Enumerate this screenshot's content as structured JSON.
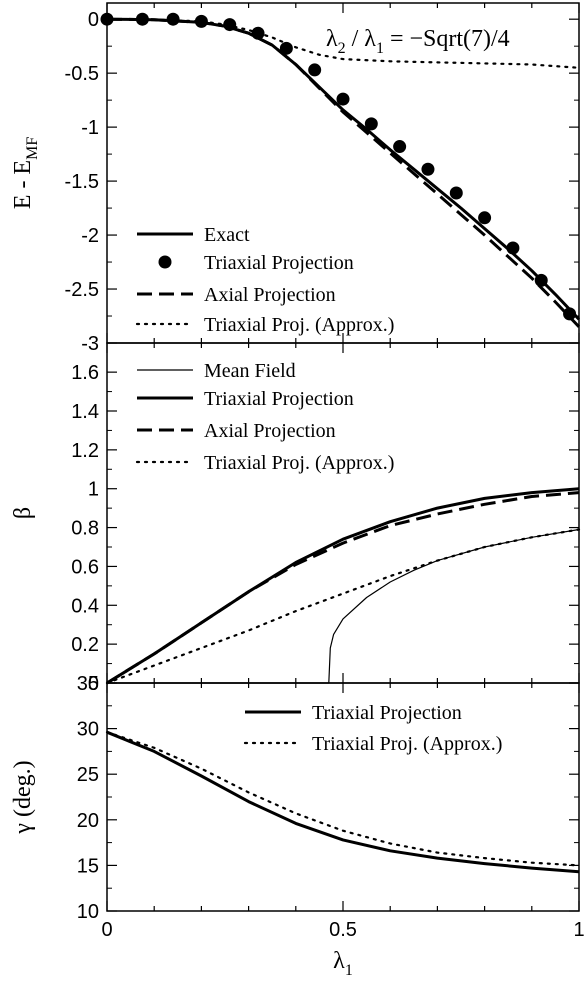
{
  "chart_data": [
    {
      "type": "line",
      "panel": "energy",
      "ylabel": "E - E",
      "ylabel_sub": "MF",
      "annotation": {
        "lhs": "λ",
        "lhs_sub": "2",
        "mid": " / λ",
        "mid_sub": "1",
        "rhs": " = −Sqrt(7)/4"
      },
      "xlim": [
        0,
        1
      ],
      "ylim": [
        -3,
        0.15
      ],
      "yticks": [
        0,
        -0.5,
        -1,
        -1.5,
        -2,
        -2.5,
        -3
      ],
      "ytick_labels": [
        "0",
        "-0.5",
        "-1",
        "-1.5",
        "-2",
        "-2.5",
        "-3"
      ],
      "series": [
        {
          "name": "Exact",
          "style": "solid",
          "x": [
            0,
            0.1,
            0.2,
            0.25,
            0.3,
            0.35,
            0.4,
            0.45,
            0.5,
            0.55,
            0.6,
            0.65,
            0.7,
            0.75,
            0.8,
            0.85,
            0.9,
            0.95,
            1.0
          ],
          "y": [
            0,
            -0.005,
            -0.03,
            -0.065,
            -0.13,
            -0.24,
            -0.42,
            -0.63,
            -0.84,
            -1.02,
            -1.21,
            -1.39,
            -1.57,
            -1.75,
            -1.94,
            -2.13,
            -2.33,
            -2.55,
            -2.78
          ]
        },
        {
          "name": "Triaxial Projection",
          "style": "markers",
          "x": [
            0,
            0.075,
            0.14,
            0.2,
            0.26,
            0.32,
            0.38,
            0.44,
            0.5,
            0.56,
            0.62,
            0.68,
            0.74,
            0.8,
            0.86,
            0.92,
            0.98
          ],
          "y": [
            0,
            0,
            0,
            -0.02,
            -0.05,
            -0.13,
            -0.27,
            -0.47,
            -0.74,
            -0.97,
            -1.18,
            -1.39,
            -1.61,
            -1.84,
            -2.12,
            -2.42,
            -2.73
          ]
        },
        {
          "name": "Axial Projection",
          "style": "dashed",
          "x": [
            0,
            0.1,
            0.2,
            0.25,
            0.3,
            0.35,
            0.4,
            0.45,
            0.5,
            0.55,
            0.6,
            0.65,
            0.7,
            0.75,
            0.8,
            0.85,
            0.9,
            0.95,
            1.0
          ],
          "y": [
            0,
            -0.005,
            -0.03,
            -0.065,
            -0.13,
            -0.24,
            -0.42,
            -0.64,
            -0.86,
            -1.05,
            -1.24,
            -1.43,
            -1.62,
            -1.81,
            -2.0,
            -2.2,
            -2.4,
            -2.62,
            -2.85
          ]
        },
        {
          "name": "Triaxial Proj. (Approx.)",
          "style": "dotted",
          "x": [
            0,
            0.1,
            0.2,
            0.25,
            0.3,
            0.35,
            0.4,
            0.45,
            0.5,
            0.6,
            0.7,
            0.8,
            0.9,
            1.0
          ],
          "y": [
            0,
            -0.005,
            -0.02,
            -0.05,
            -0.1,
            -0.17,
            -0.26,
            -0.33,
            -0.37,
            -0.39,
            -0.4,
            -0.41,
            -0.42,
            -0.45
          ]
        }
      ]
    },
    {
      "type": "line",
      "panel": "beta",
      "ylabel": "β",
      "xlim": [
        0,
        1
      ],
      "ylim": [
        0,
        1.75
      ],
      "yticks": [
        0,
        0.2,
        0.4,
        0.6,
        0.8,
        1.0,
        1.2,
        1.4,
        1.6
      ],
      "ytick_labels": [
        "0",
        "0.2",
        "0.4",
        "0.6",
        "0.8",
        "1",
        "1.2",
        "1.4",
        "1.6"
      ],
      "series": [
        {
          "name": "Mean Field",
          "style": "thin",
          "x": [
            0,
            0.47,
            0.473,
            0.48,
            0.5,
            0.55,
            0.6,
            0.65,
            0.7,
            0.8,
            0.9,
            1.0
          ],
          "y": [
            0,
            0,
            0.18,
            0.25,
            0.33,
            0.44,
            0.52,
            0.58,
            0.63,
            0.7,
            0.75,
            0.79
          ]
        },
        {
          "name": "Triaxial Projection",
          "style": "solid",
          "x": [
            0,
            0.1,
            0.2,
            0.3,
            0.4,
            0.5,
            0.6,
            0.7,
            0.8,
            0.9,
            1.0
          ],
          "y": [
            0,
            0.15,
            0.31,
            0.47,
            0.62,
            0.74,
            0.83,
            0.9,
            0.95,
            0.98,
            1.0
          ]
        },
        {
          "name": "Axial Projection",
          "style": "dashed",
          "x": [
            0,
            0.1,
            0.2,
            0.3,
            0.4,
            0.5,
            0.6,
            0.7,
            0.8,
            0.9,
            1.0
          ],
          "y": [
            0,
            0.15,
            0.31,
            0.47,
            0.61,
            0.72,
            0.81,
            0.87,
            0.92,
            0.96,
            0.98
          ]
        },
        {
          "name": "Triaxial Proj. (Approx.)",
          "style": "dotted",
          "x": [
            0,
            0.1,
            0.2,
            0.3,
            0.4,
            0.5,
            0.6,
            0.7,
            0.8,
            0.9,
            1.0
          ],
          "y": [
            0,
            0.09,
            0.18,
            0.27,
            0.37,
            0.46,
            0.55,
            0.63,
            0.7,
            0.75,
            0.79
          ]
        }
      ]
    },
    {
      "type": "line",
      "panel": "gamma",
      "ylabel": "γ (deg.)",
      "xlabel": "λ",
      "xlabel_sub": "1",
      "xlim": [
        0,
        1
      ],
      "ylim": [
        10,
        35
      ],
      "yticks": [
        10,
        15,
        20,
        25,
        30,
        35
      ],
      "ytick_labels": [
        "10",
        "15",
        "20",
        "25",
        "30",
        "35"
      ],
      "xticks": [
        0,
        0.5,
        1
      ],
      "xtick_labels": [
        "0",
        "0.5",
        "1"
      ],
      "series": [
        {
          "name": "Triaxial Projection",
          "style": "solid",
          "x": [
            0,
            0.1,
            0.2,
            0.3,
            0.4,
            0.5,
            0.6,
            0.7,
            0.8,
            0.9,
            1.0
          ],
          "y": [
            29.6,
            27.5,
            24.8,
            22.0,
            19.6,
            17.8,
            16.6,
            15.8,
            15.2,
            14.7,
            14.3
          ]
        },
        {
          "name": "Triaxial Proj. (Approx.)",
          "style": "dotted",
          "x": [
            0,
            0.1,
            0.2,
            0.3,
            0.4,
            0.5,
            0.6,
            0.7,
            0.8,
            0.9,
            1.0
          ],
          "y": [
            29.6,
            27.9,
            25.6,
            23.0,
            20.7,
            18.8,
            17.4,
            16.4,
            15.8,
            15.3,
            15.0
          ]
        }
      ]
    }
  ]
}
